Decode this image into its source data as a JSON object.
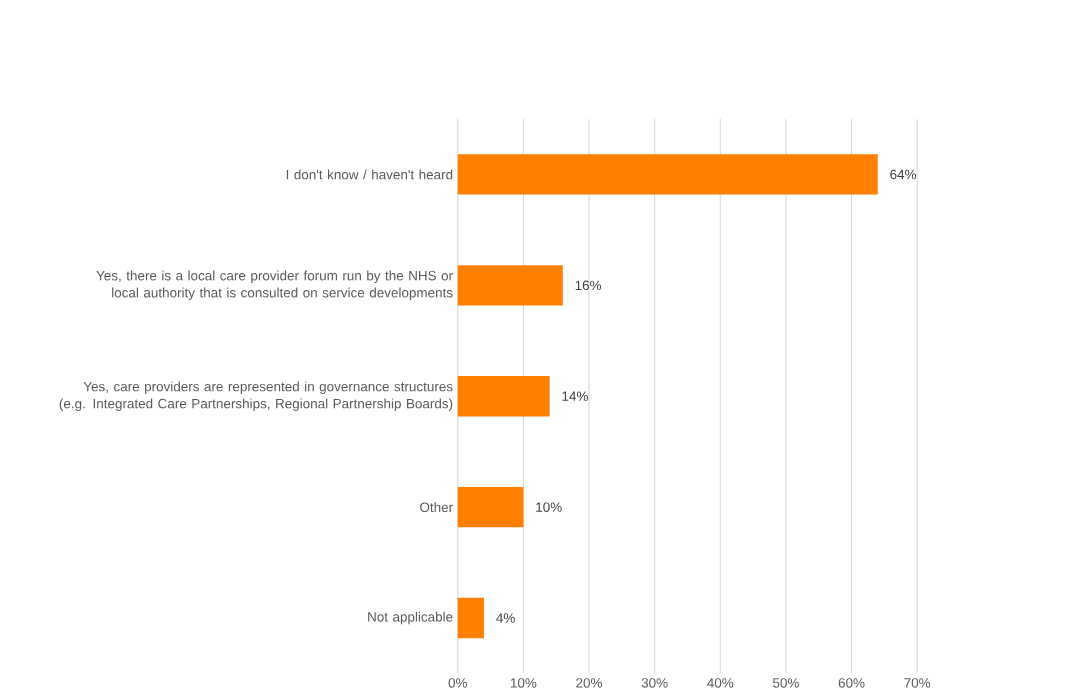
{
  "chart_data": {
    "type": "bar",
    "orientation": "horizontal",
    "categories": [
      "I don't know / haven't heard",
      "Yes, there is a local care provider forum run by the NHS or local authority that is consulted on service developments",
      "Yes, care providers are represented in governance structures (e.g. Integrated Care Partnerships, Regional Partnership Boards)",
      "Other",
      "Not applicable"
    ],
    "values": [
      64,
      16,
      14,
      10,
      4
    ],
    "value_labels": [
      "64%",
      "16%",
      "14%",
      "10%",
      "4%"
    ],
    "color": "#ff7f00",
    "xlim": [
      0,
      70
    ],
    "xticks": [
      {
        "value": 0,
        "label": "0%"
      },
      {
        "value": 10,
        "label": "10%"
      },
      {
        "value": 20,
        "label": "20%"
      },
      {
        "value": 30,
        "label": "30%"
      },
      {
        "value": 40,
        "label": "40%"
      },
      {
        "value": 50,
        "label": "50%"
      },
      {
        "value": 60,
        "label": "60%"
      },
      {
        "value": 70,
        "label": "70%"
      }
    ],
    "grid": "x"
  }
}
